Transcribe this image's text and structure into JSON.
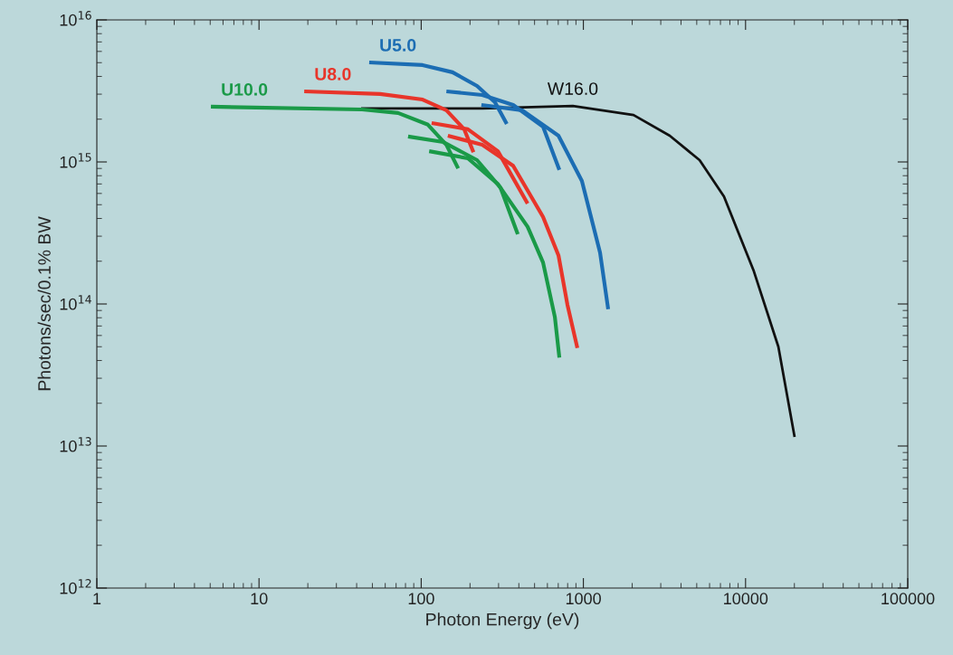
{
  "chart_data": {
    "type": "line",
    "xlabel": "Photon Energy (eV)",
    "ylabel": "Photons/sec/0.1% BW",
    "log": "xy",
    "grid": false,
    "legend": false,
    "marker": "none",
    "line_style": "solid",
    "xlim": [
      1,
      100000
    ],
    "xticks": [
      1,
      10,
      100,
      1000,
      10000,
      100000
    ],
    "ylim": [
      1000000000000.0,
      1e+16
    ],
    "yticks": [
      {
        "value": 1000000000000.0,
        "label": "10$^{12}$"
      },
      {
        "value": 10000000000000.0,
        "label": "10$^{13}$"
      },
      {
        "value": 100000000000000.0,
        "label": "10$^{14}$"
      },
      {
        "value": 1000000000000000.0,
        "label": "10$^{15}$"
      },
      {
        "value": 1e+16,
        "label": "10$^{16}$"
      }
    ],
    "series": [
      {
        "name": "W16.0",
        "color": "#111111",
        "x": [
          42.6,
          238,
          861,
          2038,
          3408,
          5207,
          7362,
          11250,
          15930,
          20060
        ],
        "values": [
          2380000000000000.0,
          2380000000000000.0,
          2480000000000000.0,
          2140000000000000.0,
          1530000000000000.0,
          1030000000000000.0,
          570000000000000.0,
          170000000000000.0,
          50000000000000.0,
          11600000000000.0
        ]
      },
      {
        "name": "U10.0",
        "color": "#1a9a48",
        "x": [
          5.05,
          43.2,
          72,
          110,
          143,
          169
        ],
        "values": [
          2450000000000000.0,
          2340000000000000.0,
          2210000000000000.0,
          1830000000000000.0,
          1320000000000000.0,
          900000000000000.0
        ]
      },
      {
        "color": "#1a9a48",
        "x": [
          83,
          137,
          221,
          308,
          394
        ],
        "values": [
          1510000000000000.0,
          1380000000000000.0,
          1030000000000000.0,
          660000000000000.0,
          310000000000000.0
        ]
      },
      {
        "color": "#1a9a48",
        "x": [
          112,
          194,
          297,
          453,
          564,
          667,
          711
        ],
        "values": [
          1190000000000000.0,
          1060000000000000.0,
          700000000000000.0,
          350000000000000.0,
          196000000000000.0,
          81000000000000.0,
          42000000000000.0
        ]
      },
      {
        "name": "U8.0",
        "color": "#e8352a",
        "x": [
          19.0,
          55.8,
          102,
          143,
          184,
          210
        ],
        "values": [
          3140000000000000.0,
          3010000000000000.0,
          2750000000000000.0,
          2310000000000000.0,
          1700000000000000.0,
          1170000000000000.0
        ]
      },
      {
        "color": "#e8352a",
        "x": [
          116,
          194,
          297,
          453
        ],
        "values": [
          1880000000000000.0,
          1700000000000000.0,
          1190000000000000.0,
          510000000000000.0
        ]
      },
      {
        "color": "#e8352a",
        "x": [
          146,
          238,
          369,
          564,
          702,
          797,
          918
        ],
        "values": [
          1530000000000000.0,
          1320000000000000.0,
          940000000000000.0,
          410000000000000.0,
          220000000000000.0,
          99000000000000.0,
          49000000000000.0
        ]
      },
      {
        "name": "U5.0",
        "color": "#1c6db3",
        "x": [
          47.8,
          102,
          156,
          221,
          285,
          337
        ],
        "values": [
          5020000000000000.0,
          4810000000000000.0,
          4280000000000000.0,
          3430000000000000.0,
          2630000000000000.0,
          1850000000000000.0
        ]
      },
      {
        "color": "#1c6db3",
        "x": [
          143,
          238,
          369,
          564,
          711
        ],
        "values": [
          3140000000000000.0,
          2960000000000000.0,
          2520000000000000.0,
          1770000000000000.0,
          880000000000000.0
        ]
      },
      {
        "color": "#1c6db3",
        "x": [
          235,
          420,
          702,
          979,
          1267,
          1422
        ],
        "values": [
          2520000000000000.0,
          2310000000000000.0,
          1530000000000000.0,
          735000000000000.0,
          230000000000000.0,
          92000000000000.0
        ]
      }
    ]
  }
}
